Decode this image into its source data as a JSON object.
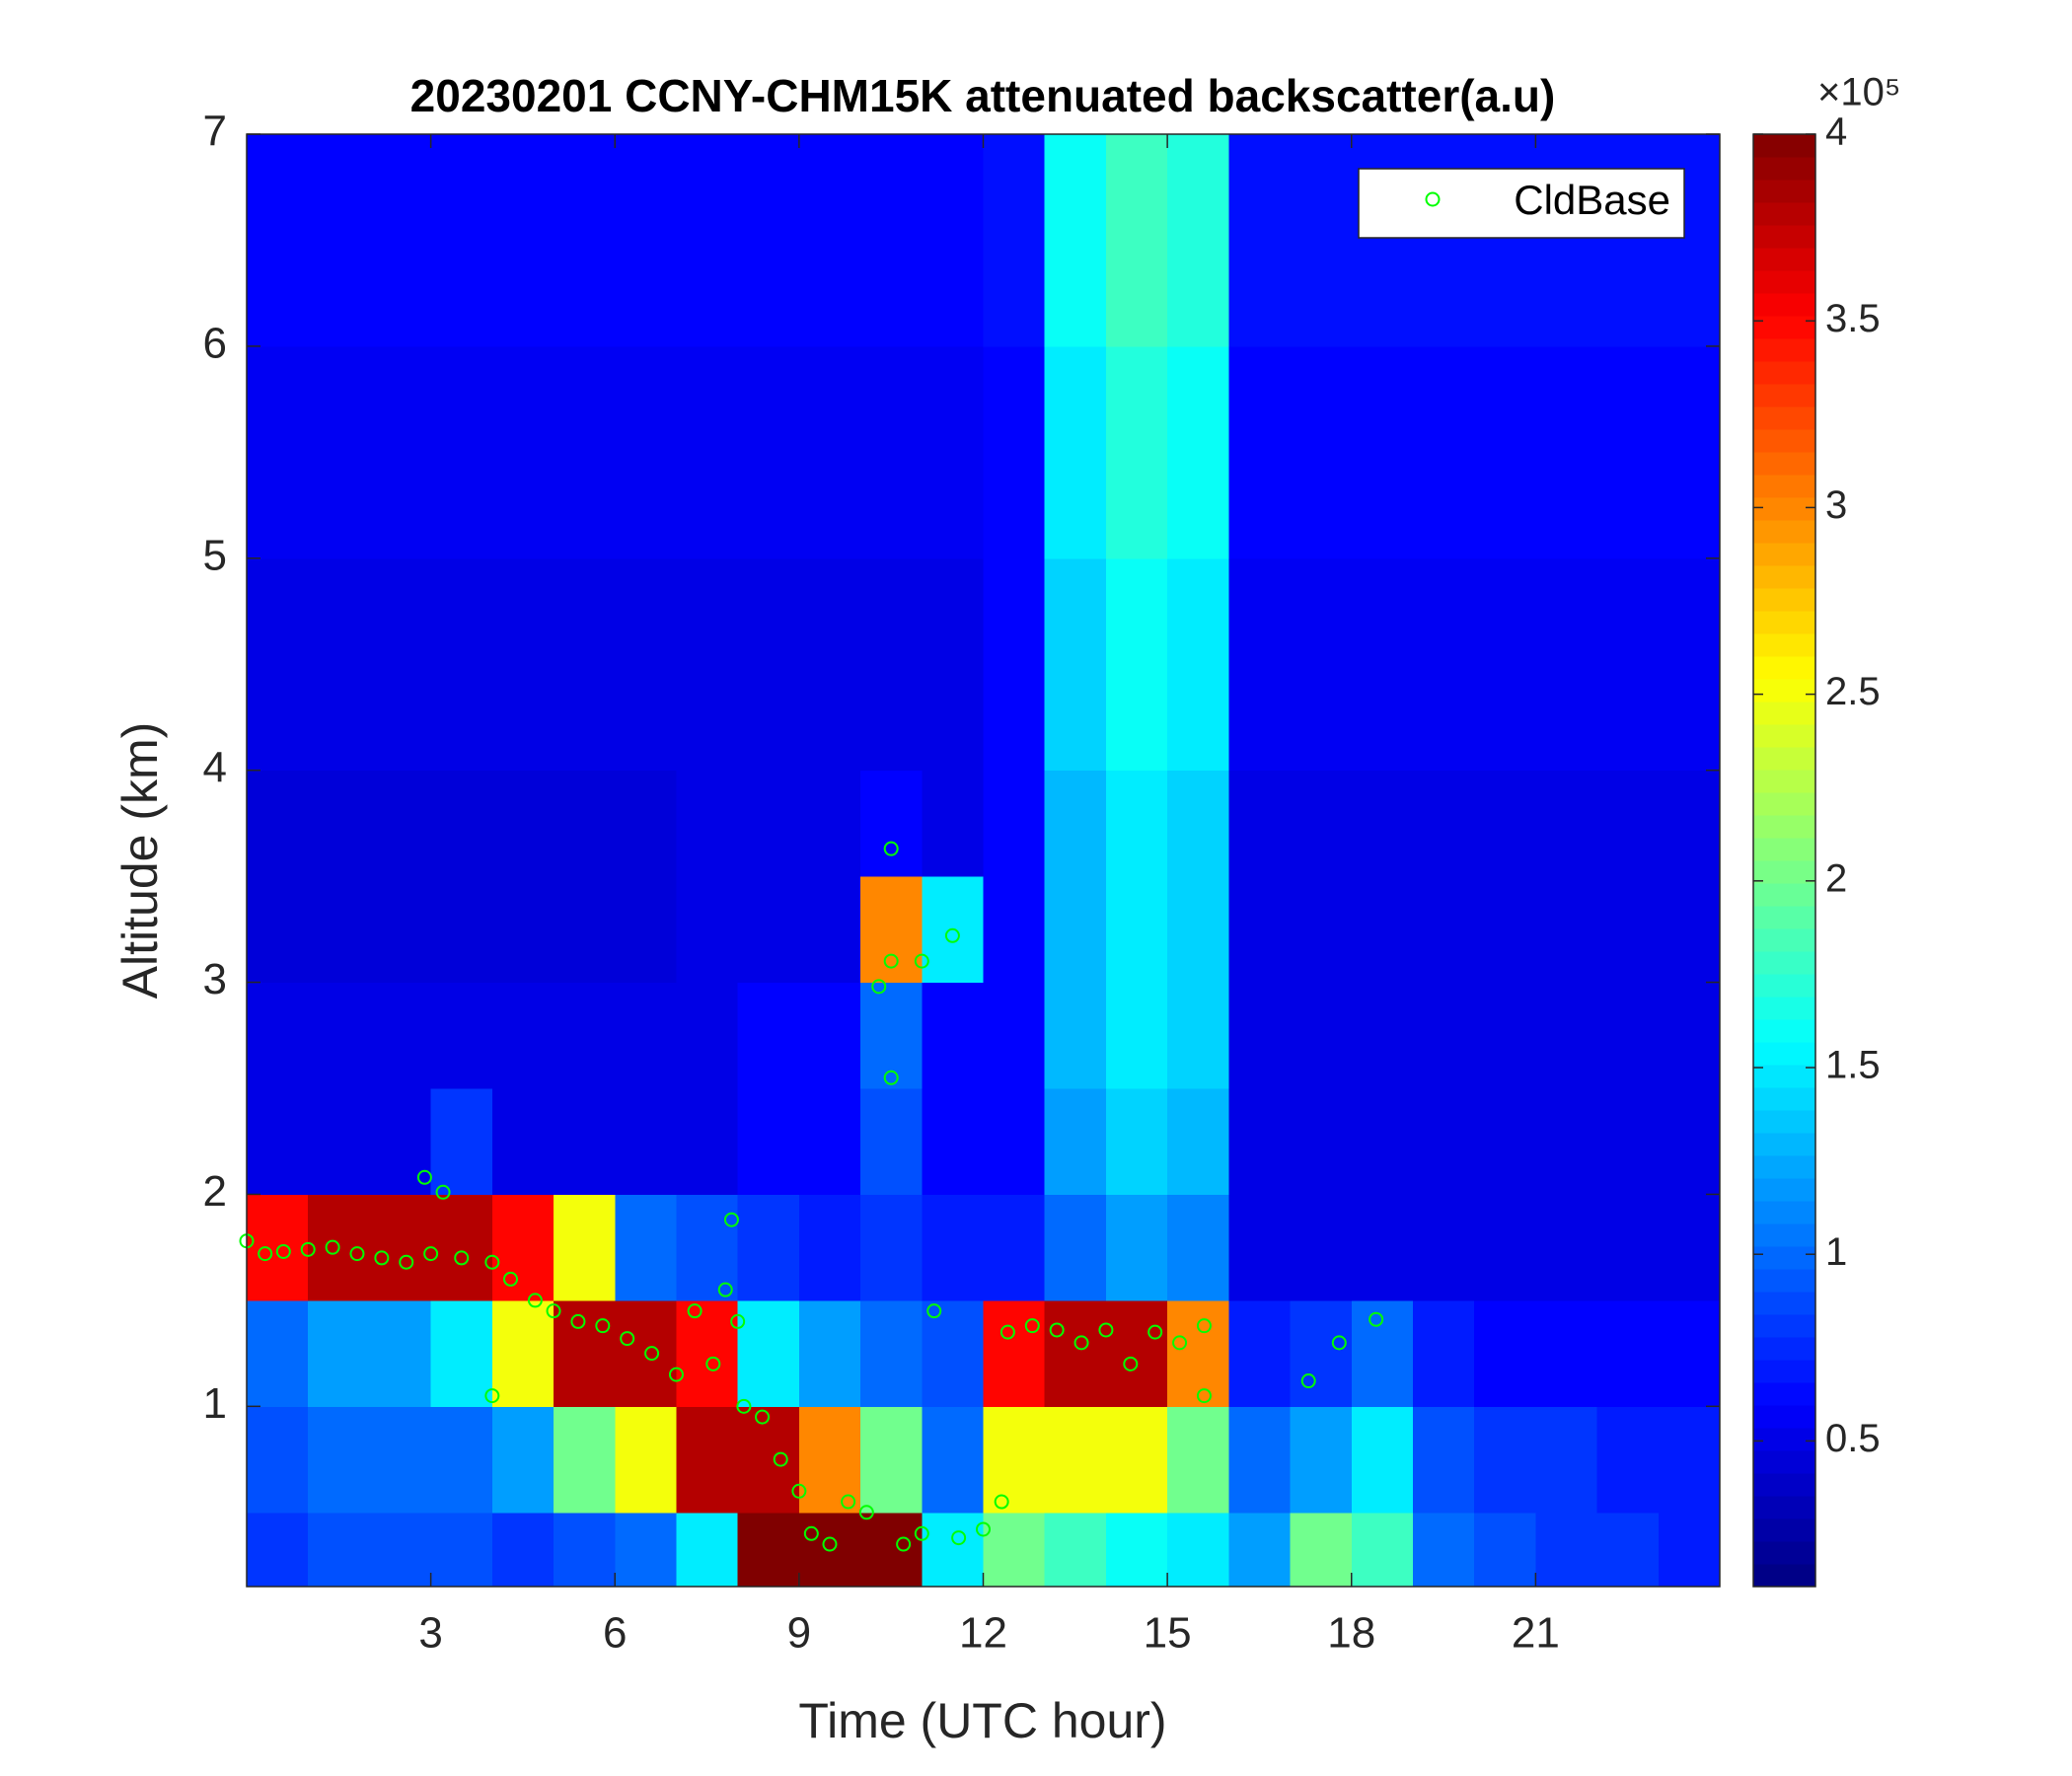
{
  "chart_data": {
    "type": "heatmap",
    "title": "20230201 CCNY-CHM15K attenuated backscatter(a.u)",
    "x_label": "Time (UTC hour)",
    "y_label": "Altitude (km)",
    "xlim": [
      0,
      24
    ],
    "ylim": [
      0.15,
      7
    ],
    "xticks": [
      3,
      6,
      9,
      12,
      15,
      18,
      21
    ],
    "yticks": [
      1,
      2,
      3,
      4,
      5,
      6,
      7
    ],
    "colormap": "jet",
    "clim": [
      0.11,
      4
    ],
    "cticks": [
      0.5,
      1,
      1.5,
      2,
      2.5,
      3,
      3.5,
      4
    ],
    "colorbar_exponent": "×10⁵",
    "x_bins": [
      0,
      1,
      2,
      3,
      4,
      5,
      6,
      7,
      8,
      9,
      10,
      11,
      12,
      13,
      14,
      15,
      16,
      17,
      18,
      19,
      20,
      21,
      22,
      23,
      24
    ],
    "y_bins": [
      0.15,
      0.5,
      1,
      1.5,
      2,
      2.5,
      3,
      3.5,
      4,
      5,
      6,
      7
    ],
    "z": [
      [
        0.8,
        0.9,
        0.9,
        0.9,
        0.8,
        0.9,
        1.0,
        1.5,
        4.0,
        4.0,
        4.0,
        1.5,
        2.0,
        1.8,
        1.6,
        1.5,
        1.2,
        2.0,
        1.8,
        1.0,
        0.9,
        0.8,
        0.8,
        0.7
      ],
      [
        0.9,
        1.0,
        1.0,
        1.0,
        1.2,
        2.0,
        2.5,
        3.8,
        3.8,
        3.0,
        2.0,
        1.0,
        2.5,
        2.5,
        2.5,
        2.0,
        1.0,
        1.2,
        1.5,
        0.9,
        0.8,
        0.8,
        0.7,
        0.7
      ],
      [
        1.0,
        1.2,
        1.2,
        1.5,
        2.5,
        3.8,
        3.8,
        3.5,
        1.5,
        1.2,
        1.0,
        0.9,
        3.5,
        3.8,
        3.8,
        3.0,
        0.7,
        0.8,
        1.0,
        0.7,
        0.6,
        0.6,
        0.6,
        0.6
      ],
      [
        3.5,
        3.8,
        3.8,
        3.8,
        3.5,
        2.5,
        1.0,
        0.9,
        0.8,
        0.7,
        0.8,
        0.7,
        0.7,
        1.0,
        1.2,
        1.1,
        0.5,
        0.5,
        0.5,
        0.5,
        0.5,
        0.5,
        0.5,
        0.5
      ],
      [
        0.5,
        0.5,
        0.5,
        0.8,
        0.5,
        0.5,
        0.5,
        0.5,
        0.6,
        0.6,
        0.9,
        0.6,
        0.6,
        1.2,
        1.4,
        1.3,
        0.5,
        0.5,
        0.5,
        0.5,
        0.5,
        0.5,
        0.5,
        0.5
      ],
      [
        0.5,
        0.5,
        0.5,
        0.5,
        0.5,
        0.5,
        0.5,
        0.5,
        0.6,
        0.6,
        1.0,
        0.6,
        0.6,
        1.3,
        1.5,
        1.4,
        0.5,
        0.5,
        0.5,
        0.5,
        0.5,
        0.5,
        0.5,
        0.5
      ],
      [
        0.45,
        0.45,
        0.45,
        0.45,
        0.45,
        0.45,
        0.45,
        0.5,
        0.5,
        0.5,
        3.0,
        1.5,
        0.6,
        1.3,
        1.5,
        1.4,
        0.5,
        0.5,
        0.5,
        0.5,
        0.5,
        0.5,
        0.5,
        0.5
      ],
      [
        0.45,
        0.45,
        0.45,
        0.45,
        0.45,
        0.45,
        0.45,
        0.5,
        0.5,
        0.5,
        0.6,
        0.5,
        0.6,
        1.3,
        1.5,
        1.4,
        0.5,
        0.5,
        0.5,
        0.5,
        0.5,
        0.5,
        0.5,
        0.5
      ],
      [
        0.5,
        0.5,
        0.5,
        0.5,
        0.5,
        0.5,
        0.5,
        0.5,
        0.5,
        0.5,
        0.5,
        0.5,
        0.6,
        1.4,
        1.6,
        1.5,
        0.55,
        0.55,
        0.55,
        0.55,
        0.55,
        0.55,
        0.55,
        0.55
      ],
      [
        0.55,
        0.55,
        0.55,
        0.55,
        0.55,
        0.55,
        0.55,
        0.55,
        0.55,
        0.55,
        0.55,
        0.55,
        0.6,
        1.5,
        1.7,
        1.6,
        0.6,
        0.6,
        0.6,
        0.6,
        0.6,
        0.6,
        0.6,
        0.6
      ],
      [
        0.6,
        0.6,
        0.6,
        0.6,
        0.6,
        0.6,
        0.6,
        0.6,
        0.6,
        0.6,
        0.6,
        0.6,
        0.65,
        1.6,
        1.8,
        1.7,
        0.65,
        0.65,
        0.65,
        0.65,
        0.65,
        0.65,
        0.65,
        0.65
      ]
    ],
    "legend": "northeast",
    "series": [
      {
        "name": "CldBase",
        "color": "#00ff00",
        "x": [
          0.0,
          0.3,
          0.6,
          1.0,
          1.4,
          1.8,
          2.2,
          2.6,
          2.9,
          3.0,
          3.2,
          3.5,
          4.0,
          4.0,
          4.3,
          4.7,
          5.0,
          5.4,
          5.8,
          6.2,
          6.6,
          7.0,
          7.3,
          7.6,
          7.8,
          7.9,
          8.0,
          8.1,
          8.4,
          8.7,
          9.0,
          9.2,
          9.5,
          9.8,
          10.1,
          10.3,
          10.5,
          10.5,
          10.5,
          10.7,
          11.0,
          11.0,
          11.2,
          11.5,
          11.6,
          12.0,
          12.3,
          12.4,
          12.8,
          13.2,
          13.6,
          14.0,
          14.4,
          14.8,
          15.2,
          15.6,
          15.6,
          17.3,
          17.8,
          18.4
        ],
        "values": [
          1.78,
          1.72,
          1.73,
          1.74,
          1.75,
          1.72,
          1.7,
          1.68,
          2.08,
          1.72,
          2.01,
          1.7,
          1.68,
          1.05,
          1.6,
          1.5,
          1.45,
          1.4,
          1.38,
          1.32,
          1.25,
          1.15,
          1.45,
          1.2,
          1.55,
          1.88,
          1.4,
          1.0,
          0.95,
          0.75,
          0.6,
          0.4,
          0.35,
          0.55,
          0.5,
          2.98,
          3.1,
          2.55,
          3.63,
          0.35,
          3.1,
          0.4,
          1.45,
          3.22,
          0.38,
          0.42,
          0.55,
          1.35,
          1.38,
          1.36,
          1.3,
          1.36,
          1.2,
          1.35,
          1.3,
          1.38,
          1.05,
          1.12,
          1.3,
          1.41
        ]
      }
    ]
  }
}
